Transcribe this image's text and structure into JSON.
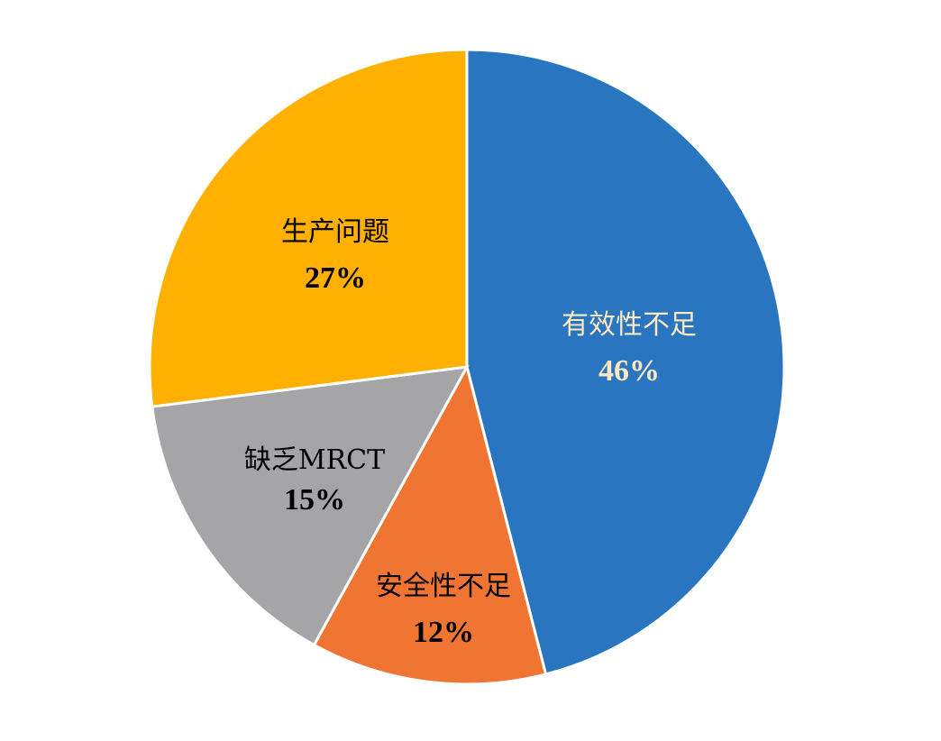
{
  "chart_data": {
    "type": "pie",
    "start_angle": "12 o'clock",
    "direction": "clockwise",
    "slices": [
      {
        "label": "有效性不足",
        "value": 46,
        "value_label": "46%",
        "color": "#2A75C0",
        "text_color": "#FCE9C0"
      },
      {
        "label": "安全性不足",
        "value": 12,
        "value_label": "12%",
        "color": "#F07533",
        "text_color": "#000000"
      },
      {
        "label": "缺乏MRCT",
        "value": 15,
        "value_label": "15%",
        "color": "#A5A5A8",
        "text_color": "#000000"
      },
      {
        "label": "生产问题",
        "value": 27,
        "value_label": "27%",
        "color": "#FFB000",
        "text_color": "#000000"
      }
    ],
    "separator_color": "#FFFFFF"
  }
}
